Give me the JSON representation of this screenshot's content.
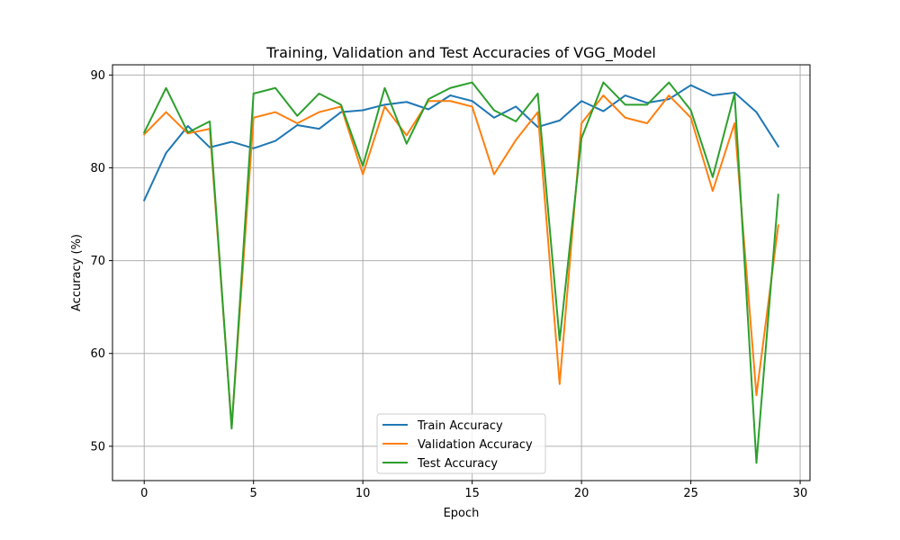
{
  "chart_data": {
    "type": "line",
    "title": "Training, Validation and Test Accuracies of VGG_Model",
    "xlabel": "Epoch",
    "ylabel": "Accuracy (%)",
    "x": [
      0,
      1,
      2,
      3,
      4,
      5,
      6,
      7,
      8,
      9,
      10,
      11,
      12,
      13,
      14,
      15,
      16,
      17,
      18,
      19,
      20,
      21,
      22,
      23,
      24,
      25,
      26,
      27,
      28,
      29
    ],
    "xlim": [
      -1.45,
      30.45
    ],
    "ylim": [
      46.3,
      91.1
    ],
    "xticks": [
      0,
      5,
      10,
      15,
      20,
      25,
      30
    ],
    "yticks": [
      50,
      60,
      70,
      80,
      90
    ],
    "grid": true,
    "legend_position": "lower-center",
    "series": [
      {
        "name": "Train Accuracy",
        "color": "#1f77b4",
        "values": [
          76.5,
          81.6,
          84.5,
          82.2,
          82.8,
          82.1,
          82.9,
          84.6,
          84.2,
          86.0,
          86.2,
          86.8,
          87.1,
          86.3,
          87.8,
          87.2,
          85.4,
          86.6,
          84.4,
          85.1,
          87.2,
          86.1,
          87.8,
          87.0,
          87.4,
          88.9,
          87.8,
          88.1,
          86.0,
          82.3
        ]
      },
      {
        "name": "Validation Accuracy",
        "color": "#ff7f0e",
        "values": [
          83.6,
          86.0,
          83.7,
          84.2,
          52.1,
          85.4,
          86.0,
          84.8,
          86.0,
          86.6,
          79.3,
          86.6,
          83.5,
          87.2,
          87.2,
          86.6,
          79.3,
          83.0,
          86.0,
          56.7,
          84.8,
          87.8,
          85.4,
          84.8,
          87.8,
          85.4,
          77.5,
          84.8,
          55.5,
          73.8
        ]
      },
      {
        "name": "Test Accuracy",
        "color": "#2ca02c",
        "values": [
          83.8,
          88.6,
          83.8,
          85.0,
          51.9,
          88.0,
          88.6,
          85.6,
          88.0,
          86.8,
          80.2,
          88.6,
          82.6,
          87.4,
          88.6,
          89.2,
          86.2,
          85.0,
          88.0,
          61.4,
          83.2,
          89.2,
          86.8,
          86.8,
          89.2,
          86.2,
          79.0,
          88.0,
          48.2,
          77.1
        ]
      }
    ]
  }
}
